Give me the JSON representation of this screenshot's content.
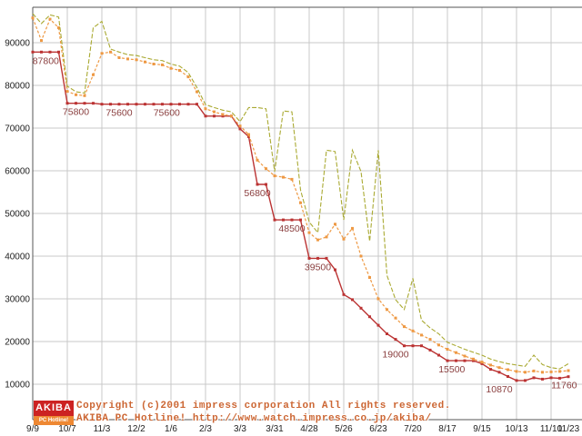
{
  "colors": {
    "background": "#ffffff",
    "grid": "#c9c9c9",
    "axis": "#555555",
    "tick_text": "#222222",
    "point_label": "#8b4040",
    "lowest_line": "#bb3333",
    "average_line": "#ee9944",
    "highest_line": "#aaaa33"
  },
  "chart_data": {
    "type": "line",
    "title": "",
    "xlabel": "",
    "ylabel": "",
    "grid": true,
    "legend": "none",
    "ylim": [
      10000,
      98000
    ],
    "y_ticks": [
      90000,
      80000,
      70000,
      60000,
      50000,
      40000,
      30000,
      20000,
      10000
    ],
    "x_tick_labels": [
      "9/9",
      "10/7",
      "11/3",
      "12/2",
      "1/6",
      "2/3",
      "3/3",
      "3/31",
      "4/28",
      "5/26",
      "6/23",
      "7/20",
      "8/17",
      "9/15",
      "10/13",
      "11/10"
    ],
    "x_tick_weeks": [
      0,
      4,
      8,
      12,
      16,
      20,
      24,
      28,
      32,
      36,
      40,
      44,
      48,
      52,
      56,
      60
    ],
    "end_tick": {
      "label": "11/23",
      "week": 62
    },
    "weeks_total": 62,
    "series": [
      {
        "name": "lowest-price",
        "color": "#bb3333",
        "dash": "",
        "width": 1.4,
        "marker": true,
        "values": [
          87800,
          87800,
          87800,
          87800,
          75800,
          75800,
          75800,
          75800,
          75600,
          75600,
          75600,
          75600,
          75600,
          75600,
          75600,
          75600,
          75600,
          75600,
          75600,
          75600,
          72800,
          72800,
          72800,
          72800,
          69800,
          68000,
          56800,
          56800,
          48500,
          48500,
          48500,
          48500,
          39500,
          39500,
          39500,
          36800,
          31000,
          29800,
          27800,
          25800,
          23800,
          21800,
          20500,
          19000,
          19000,
          19000,
          18000,
          16800,
          15500,
          15500,
          15500,
          15500,
          14800,
          13500,
          12800,
          11800,
          10870,
          10870,
          11500,
          11200,
          11500,
          11400,
          11760
        ]
      },
      {
        "name": "average-price",
        "color": "#ee9944",
        "dash": "3,2",
        "width": 1.2,
        "marker": true,
        "values": [
          95800,
          90500,
          95500,
          93500,
          78600,
          77800,
          77600,
          82500,
          87500,
          87800,
          86500,
          86200,
          86000,
          85500,
          85000,
          84800,
          84000,
          83500,
          82000,
          78500,
          74500,
          73800,
          73200,
          72800,
          70500,
          68500,
          62500,
          60500,
          58800,
          58500,
          58000,
          52500,
          45500,
          43800,
          44500,
          47500,
          44000,
          46500,
          40000,
          35000,
          30000,
          27500,
          25500,
          23500,
          22500,
          21500,
          20500,
          19200,
          18200,
          17400,
          16600,
          15900,
          15200,
          14500,
          13900,
          13400,
          13000,
          12800,
          13100,
          12800,
          12900,
          13000,
          13200
        ]
      },
      {
        "name": "highest-price",
        "color": "#aaaa33",
        "dash": "5,2",
        "width": 1.1,
        "marker": false,
        "values": [
          96800,
          94500,
          96500,
          96000,
          79800,
          78500,
          78200,
          93500,
          95000,
          88500,
          87800,
          87200,
          87000,
          86500,
          86000,
          85800,
          85000,
          84500,
          83000,
          79500,
          75500,
          74800,
          74200,
          73800,
          71500,
          74800,
          74800,
          74500,
          59800,
          74000,
          73800,
          55500,
          48000,
          45500,
          64800,
          64500,
          48500,
          64800,
          59800,
          43500,
          64800,
          35500,
          29800,
          27500,
          34800,
          25000,
          23200,
          21800,
          19800,
          19000,
          18200,
          17500,
          16800,
          15900,
          15300,
          14800,
          14500,
          14200,
          16800,
          14600,
          13900,
          13600,
          14800
        ]
      }
    ],
    "point_labels": [
      {
        "text": "87800",
        "week": 1.5,
        "value": 87800
      },
      {
        "text": "75800",
        "week": 5,
        "value": 75800
      },
      {
        "text": "75600",
        "week": 10,
        "value": 75600
      },
      {
        "text": "75600",
        "week": 15.5,
        "value": 75600
      },
      {
        "text": "56800",
        "week": 26,
        "value": 56800
      },
      {
        "text": "48500",
        "week": 30,
        "value": 48500
      },
      {
        "text": "39500",
        "week": 33,
        "value": 39500
      },
      {
        "text": "19000",
        "week": 42,
        "value": 19000
      },
      {
        "text": "15500",
        "week": 48.5,
        "value": 15500
      },
      {
        "text": "10870",
        "week": 54,
        "value": 10870
      },
      {
        "text": "11760",
        "week": 61.5,
        "value": 11760
      }
    ]
  },
  "footer": {
    "copyright_line1": "Copyright (c)2001 impress corporation All rights reserved.",
    "copyright_line2": "AKIBA PC Hotline!  http://www.watch.impress.co.jp/akiba/",
    "logo_top": "AKIBA",
    "logo_bottom": "PC Hotline!"
  }
}
